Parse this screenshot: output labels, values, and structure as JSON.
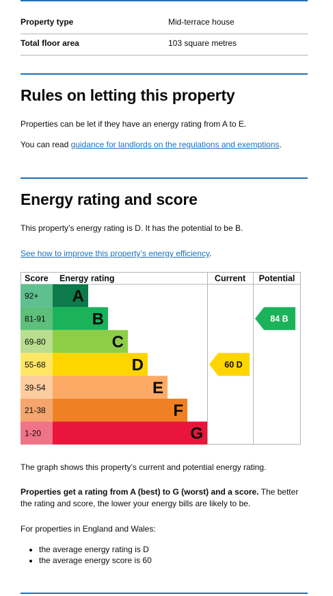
{
  "summary": {
    "rows": [
      {
        "label": "Property type",
        "value": "Mid-terrace house"
      },
      {
        "label": "Total floor area",
        "value": "103 square metres"
      }
    ]
  },
  "letting": {
    "heading": "Rules on letting this property",
    "para1": "Properties can be let if they have an energy rating from A to E.",
    "para2_prefix": "You can read ",
    "para2_link": "guidance for landlords on the regulations and exemptions",
    "para2_suffix": "."
  },
  "rating": {
    "heading": "Energy rating and score",
    "intro": "This property’s energy rating is D. It has the potential to be B.",
    "improve_link": "See how to improve this property’s energy efficiency",
    "improve_suffix": ".",
    "graph_caption": "The graph shows this property’s current and potential energy rating.",
    "bold_text": "Properties get a rating from A (best) to G (worst) and a score.",
    "rest_text": " The better the rating and score, the lower your energy bills are likely to be.",
    "averages_intro": "For properties in England and Wales:",
    "averages": [
      "the average energy rating is D",
      "the average energy score is 60"
    ]
  },
  "chart_data": {
    "type": "bar",
    "headers": {
      "score": "Score",
      "rating": "Energy rating",
      "current": "Current",
      "potential": "Potential"
    },
    "bands": [
      {
        "letter": "A",
        "range": "92+",
        "color": "#0c7a4a",
        "range_bg": "#5dc08e",
        "letter_color": "#0b0c0c"
      },
      {
        "letter": "B",
        "range": "81-91",
        "color": "#1bb35a",
        "range_bg": "#5dbf7b",
        "letter_color": "#0b0c0c"
      },
      {
        "letter": "C",
        "range": "69-80",
        "color": "#8dce46",
        "range_bg": "#b9de90",
        "letter_color": "#0b0c0c"
      },
      {
        "letter": "D",
        "range": "55-68",
        "color": "#ffd500",
        "range_bg": "#ffe766",
        "letter_color": "#0b0c0c"
      },
      {
        "letter": "E",
        "range": "39-54",
        "color": "#fcaa65",
        "range_bg": "#fdcc9f",
        "letter_color": "#0b0c0c"
      },
      {
        "letter": "F",
        "range": "21-38",
        "color": "#ef8023",
        "range_bg": "#f5a66e",
        "letter_color": "#0b0c0c"
      },
      {
        "letter": "G",
        "range": "1-20",
        "color": "#e9153b",
        "range_bg": "#f17388",
        "letter_color": "#0b0c0c"
      }
    ],
    "current": {
      "score": 60,
      "band": "D",
      "label": "60  D",
      "color": "#ffd500"
    },
    "potential": {
      "score": 84,
      "band": "B",
      "label": "84  B",
      "color": "#1bb35a"
    }
  }
}
